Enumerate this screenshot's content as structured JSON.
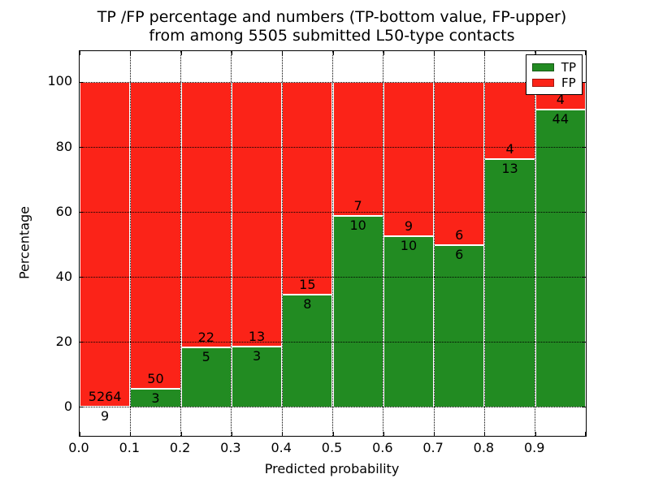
{
  "chart_data": {
    "type": "bar",
    "stacked": true,
    "normalized": "percent",
    "title_lines": [
      "TP /FP percentage and numbers (TP-bottom value, FP-upper)",
      "from among 5505 submitted L50-type contacts"
    ],
    "xlabel": "Predicted probability",
    "ylabel": "Percentage",
    "xlim": [
      0.0,
      1.0
    ],
    "ylim": [
      -8.8,
      109.6
    ],
    "bin_edges": [
      0.0,
      0.1,
      0.2,
      0.3,
      0.4,
      0.5,
      0.6,
      0.7,
      0.8,
      0.9,
      1.0
    ],
    "x_tick_labels": [
      "0.0",
      "0.1",
      "0.2",
      "0.3",
      "0.4",
      "0.5",
      "0.6",
      "0.7",
      "0.8",
      "0.9"
    ],
    "y_ticks": [
      0,
      20,
      40,
      60,
      80,
      100
    ],
    "grid": {
      "style": "dotted",
      "color": "#000000"
    },
    "series": [
      {
        "name": "TP",
        "color": "#228B22",
        "counts": [
          9,
          3,
          5,
          3,
          8,
          10,
          10,
          6,
          13,
          44
        ],
        "label_placement": "below stack boundary"
      },
      {
        "name": "FP",
        "color": "#FB2318",
        "counts": [
          5264,
          50,
          22,
          13,
          15,
          7,
          9,
          6,
          4,
          4
        ],
        "label_placement": "above stack boundary"
      }
    ],
    "tp_percent": [
      0.17,
      5.66,
      18.52,
      18.75,
      34.78,
      58.82,
      52.63,
      50.0,
      76.47,
      91.67
    ],
    "legend": {
      "position": "upper right",
      "entries": [
        {
          "label": "TP",
          "color": "#228B22"
        },
        {
          "label": "FP",
          "color": "#FB2318"
        }
      ]
    },
    "axis_color": "#000000",
    "background": "#ffffff"
  }
}
